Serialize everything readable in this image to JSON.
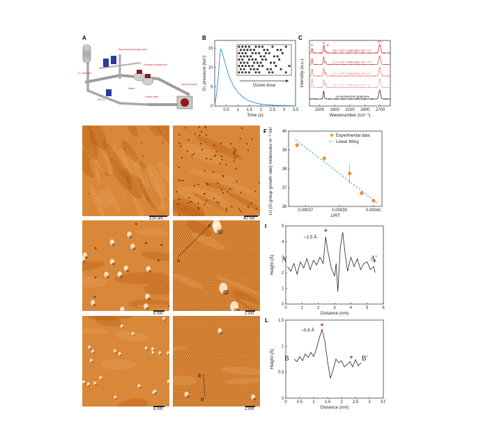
{
  "panels": {
    "A": {
      "label": "A",
      "callouts": [
        "O₃ reservoir",
        "Synchronized purge valve",
        "Pressure transducers",
        "Vacuum pump",
        "Guard valve",
        "Metal",
        "MO-O₃"
      ]
    },
    "B": {
      "label": "B",
      "inset_caption": "Ozone dose"
    },
    "C": {
      "label": "C"
    },
    "D": {
      "label": "D",
      "scale": "100 nm"
    },
    "E": {
      "label": "E",
      "scale": "40 nm"
    },
    "F": {
      "label": "F"
    },
    "G": {
      "label": "G",
      "scale": "5 nm"
    },
    "H": {
      "label": "H",
      "scale": "2 nm",
      "line_start": "A",
      "line_end": "A′"
    },
    "I": {
      "label": "I"
    },
    "J": {
      "label": "J",
      "scale": "5 nm"
    },
    "K": {
      "label": "K",
      "scale": "2 nm",
      "line_start": "B",
      "line_end": "B′"
    },
    "L": {
      "label": "L"
    }
  },
  "colors": {
    "stm_dark": "#b4580e",
    "stm_mid": "#d9883a",
    "stm_light": "#f2c48a",
    "trace_blue": "#3a9ad6",
    "trace_red": "#d6403a",
    "marker_orange": "#f39a26",
    "arrow_red": "#e33a2a"
  },
  "chart_data": [
    {
      "id": "B",
      "type": "line",
      "title": "",
      "xlabel": "Time (s)",
      "ylabel": "O₃ pressure (torr)",
      "xlim": [
        0,
        3.5
      ],
      "ylim": [
        0,
        17
      ],
      "xticks": [
        0.5,
        1.0,
        1.5,
        2.0,
        2.5,
        3.0,
        3.5
      ],
      "yticks": [
        0,
        5,
        10,
        15
      ],
      "series": [
        {
          "x": [
            0.0,
            0.1,
            0.2,
            0.25,
            0.3,
            0.4,
            0.5,
            0.6,
            0.7,
            0.8,
            0.9,
            1.0,
            1.2,
            1.4,
            1.6,
            1.8,
            2.0,
            2.3,
            2.6,
            3.0,
            3.5
          ],
          "values": [
            0,
            4,
            11,
            14.8,
            14.4,
            12.2,
            10.0,
            8.1,
            6.6,
            5.4,
            4.4,
            3.6,
            2.4,
            1.6,
            1.1,
            0.75,
            0.5,
            0.3,
            0.18,
            0.1,
            0.05
          ]
        }
      ]
    },
    {
      "id": "C",
      "type": "line",
      "title": "",
      "xlabel": "Wavenumber (cm⁻¹)",
      "ylabel": "Intensity (a.u.)",
      "xlim": [
        1300,
        2900
      ],
      "xticks": [
        1500,
        1800,
        2100,
        2400,
        2700
      ],
      "peak_labels": [
        "D",
        "G",
        "D′",
        "2D"
      ],
      "series": [
        {
          "name": "3.5 × 10¹⁴ molecules cm⁻² s⁻¹",
          "offset": 5
        },
        {
          "name": "2.2 × 10¹⁴ molecules cm⁻² s⁻¹",
          "offset": 4
        },
        {
          "name": "1.2 × 10¹⁴ molecules cm⁻² s⁻¹",
          "offset": 3
        },
        {
          "name": "4.6 × 10¹³ molecules cm⁻² s⁻¹",
          "offset": 2
        },
        {
          "name": "As-synthesized graphene",
          "offset": 1
        }
      ]
    },
    {
      "id": "F",
      "type": "scatter",
      "title": "",
      "xlabel": "1/RT",
      "ylabel": "Ln (O-group growth rate) molecules m⁻² min⁻¹",
      "xlim": [
        0.00036,
        0.000415
      ],
      "ylim": [
        36,
        40
      ],
      "xticks": [
        0.00037,
        0.00039,
        0.00041
      ],
      "yticks": [
        36,
        37,
        38,
        39,
        40
      ],
      "legend": [
        "Experimental data",
        "Linear fitting"
      ],
      "legend_position": "top-right",
      "series": [
        {
          "name": "Experimental data",
          "x": [
            0.000365,
            0.000381,
            0.000396,
            0.000403,
            0.00041
          ],
          "values": [
            39.25,
            38.55,
            37.75,
            36.7,
            36.3
          ],
          "errors": [
            0.1,
            0.1,
            0.55,
            0.1,
            0.1
          ]
        },
        {
          "name": "Linear fitting",
          "x": [
            0.000364,
            0.000412
          ],
          "values": [
            39.55,
            36.2
          ]
        }
      ]
    },
    {
      "id": "I",
      "type": "line",
      "title": "",
      "xlabel": "Distance (nm)",
      "ylabel": "Height (Å)",
      "xlim": [
        0,
        6
      ],
      "ylim": [
        0,
        5
      ],
      "xticks": [
        0,
        1,
        2,
        3,
        4,
        5,
        6
      ],
      "yticks": [
        0,
        1,
        2,
        3,
        4,
        5
      ],
      "annotation": "~2.5 Å",
      "start_label": "A",
      "end_label": "A′",
      "series": [
        {
          "x": [
            0.1,
            0.3,
            0.5,
            0.7,
            0.9,
            1.1,
            1.3,
            1.5,
            1.7,
            1.9,
            2.1,
            2.3,
            2.45,
            2.6,
            2.8,
            3.0,
            3.1,
            3.2,
            3.35,
            3.5,
            3.65,
            3.8,
            4.0,
            4.2,
            4.4,
            4.6,
            4.8,
            5.0,
            5.2,
            5.4,
            5.5
          ],
          "values": [
            2.4,
            2.1,
            2.6,
            1.9,
            2.7,
            2.3,
            2.9,
            2.2,
            2.8,
            2.5,
            3.0,
            2.6,
            4.3,
            3.3,
            2.3,
            1.8,
            2.6,
            0.8,
            3.6,
            4.6,
            3.2,
            2.1,
            3.0,
            2.4,
            2.9,
            2.2,
            2.6,
            2.7,
            2.2,
            2.4,
            2.0
          ]
        }
      ]
    },
    {
      "id": "L",
      "type": "line",
      "title": "",
      "xlabel": "Distance (nm)",
      "ylabel": "Height (Å)",
      "xlim": [
        0,
        3.5
      ],
      "ylim": [
        0,
        1.5
      ],
      "xticks": [
        0,
        0.5,
        1.0,
        1.5,
        2.0,
        2.5,
        3.0,
        3.5
      ],
      "yticks": [
        0,
        0.5,
        1.0,
        1.5
      ],
      "annotation": "~0.6 Å",
      "start_label": "B",
      "end_label": "B′",
      "series": [
        {
          "x": [
            0.3,
            0.4,
            0.5,
            0.6,
            0.7,
            0.8,
            0.9,
            1.0,
            1.1,
            1.2,
            1.3,
            1.4,
            1.5,
            1.6,
            1.7,
            1.8,
            1.9,
            2.0,
            2.1,
            2.2,
            2.3,
            2.4,
            2.5,
            2.6,
            2.7
          ],
          "values": [
            0.75,
            0.7,
            0.8,
            0.72,
            0.85,
            0.78,
            0.88,
            0.8,
            0.95,
            1.15,
            1.32,
            1.1,
            0.7,
            0.38,
            0.55,
            0.75,
            0.68,
            0.72,
            0.6,
            0.65,
            0.7,
            0.6,
            0.74,
            0.62,
            0.68
          ]
        }
      ]
    }
  ]
}
